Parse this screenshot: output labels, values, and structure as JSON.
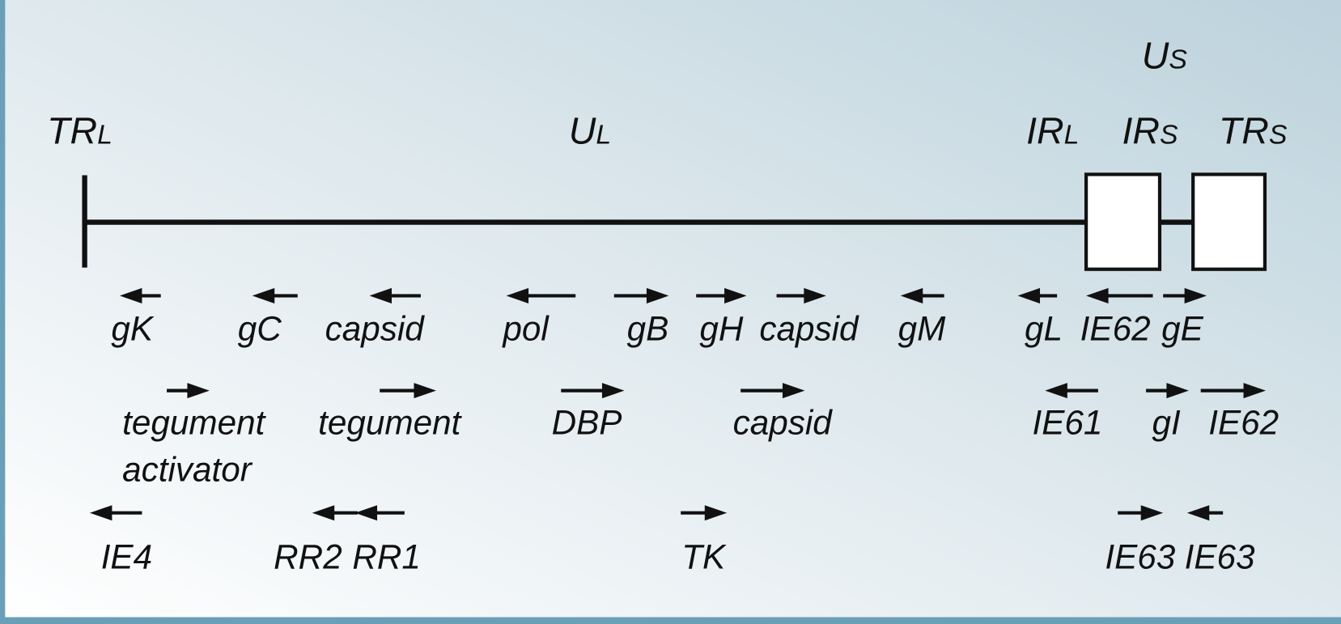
{
  "regions": [
    {
      "main": "TR",
      "sub": "L"
    },
    {
      "main": "U",
      "sub": "L"
    },
    {
      "main": "IR",
      "sub": "L"
    },
    {
      "main": "IR",
      "sub": "S"
    },
    {
      "main": "TR",
      "sub": "S"
    },
    {
      "main": "U",
      "sub": "S"
    }
  ],
  "genes": [
    {
      "lines": [
        "gK"
      ],
      "direction": "left"
    },
    {
      "lines": [
        "gC"
      ],
      "direction": "left"
    },
    {
      "lines": [
        "capsid"
      ],
      "direction": "left"
    },
    {
      "lines": [
        "pol"
      ],
      "direction": "left"
    },
    {
      "lines": [
        "gB"
      ],
      "direction": "right"
    },
    {
      "lines": [
        "gH"
      ],
      "direction": "right"
    },
    {
      "lines": [
        "capsid"
      ],
      "direction": "right"
    },
    {
      "lines": [
        "gM"
      ],
      "direction": "left"
    },
    {
      "lines": [
        "gL"
      ],
      "direction": "left"
    },
    {
      "lines": [
        "IE62"
      ],
      "direction": "left"
    },
    {
      "lines": [
        "gE"
      ],
      "direction": "right"
    },
    {
      "lines": [
        "tegument",
        "activator"
      ],
      "direction": "right"
    },
    {
      "lines": [
        "tegument"
      ],
      "direction": "right"
    },
    {
      "lines": [
        "DBP"
      ],
      "direction": "right"
    },
    {
      "lines": [
        "capsid"
      ],
      "direction": "right"
    },
    {
      "lines": [
        "IE61"
      ],
      "direction": "left"
    },
    {
      "lines": [
        "gI"
      ],
      "direction": "right"
    },
    {
      "lines": [
        "IE62"
      ],
      "direction": "right"
    },
    {
      "lines": [
        "IE4"
      ],
      "direction": "left"
    },
    {
      "lines": [
        "RR2"
      ],
      "direction": "left"
    },
    {
      "lines": [
        "RR1"
      ],
      "direction": "left"
    },
    {
      "lines": [
        "TK"
      ],
      "direction": "right"
    },
    {
      "lines": [
        "IE63"
      ],
      "direction": "right"
    },
    {
      "lines": [
        "IE63"
      ],
      "direction": "left"
    }
  ]
}
